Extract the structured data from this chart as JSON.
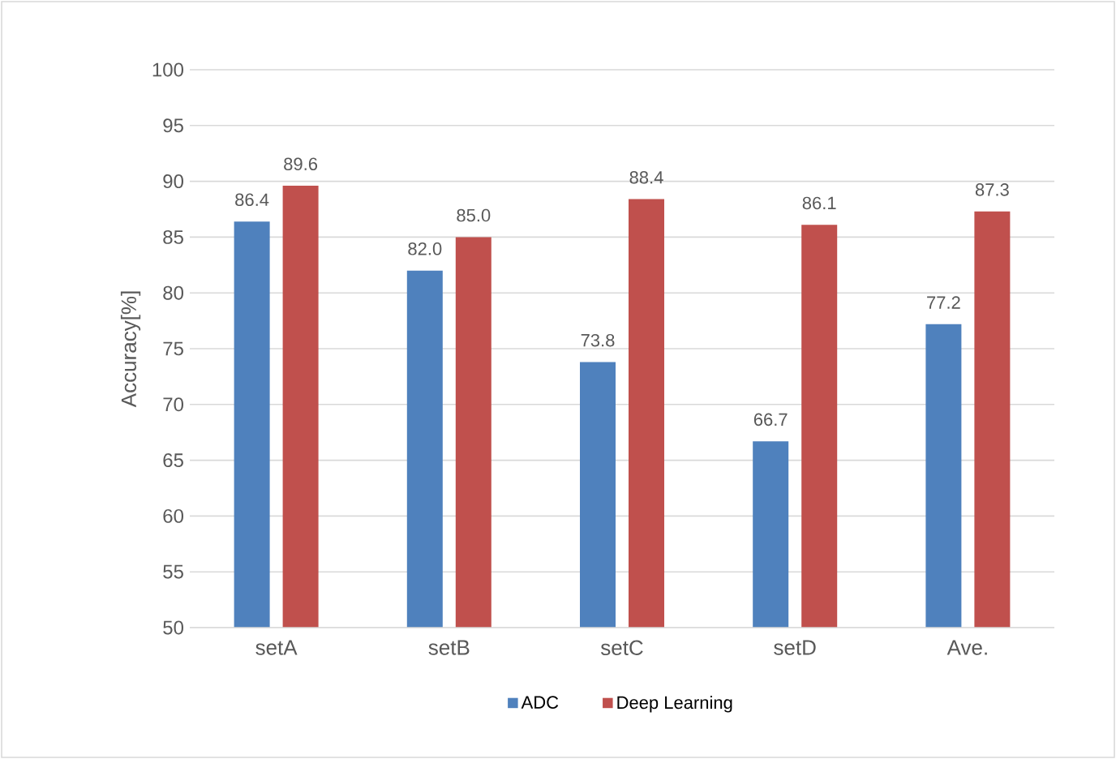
{
  "chart_data": {
    "type": "bar",
    "ylabel": "Accuracy[%]",
    "categories": [
      "setA",
      "setB",
      "setC",
      "setD",
      "Ave."
    ],
    "series": [
      {
        "name": "ADC",
        "color": "#4f81bd",
        "values": [
          86.4,
          82.0,
          73.8,
          66.7,
          77.2
        ],
        "value_labels": [
          "86.4",
          "82.0",
          "73.8",
          "66.7",
          "77.2"
        ]
      },
      {
        "name": "Deep Learning",
        "color": "#c0504d",
        "values": [
          89.6,
          85.0,
          88.4,
          86.1,
          87.3
        ],
        "value_labels": [
          "89.6",
          "85.0",
          "88.4",
          "86.1",
          "87.3"
        ]
      }
    ],
    "ylim": [
      50,
      100
    ],
    "yticks": [
      50,
      55,
      60,
      65,
      70,
      75,
      80,
      85,
      90,
      95,
      100
    ],
    "grid": "y",
    "legend": "bottom"
  }
}
